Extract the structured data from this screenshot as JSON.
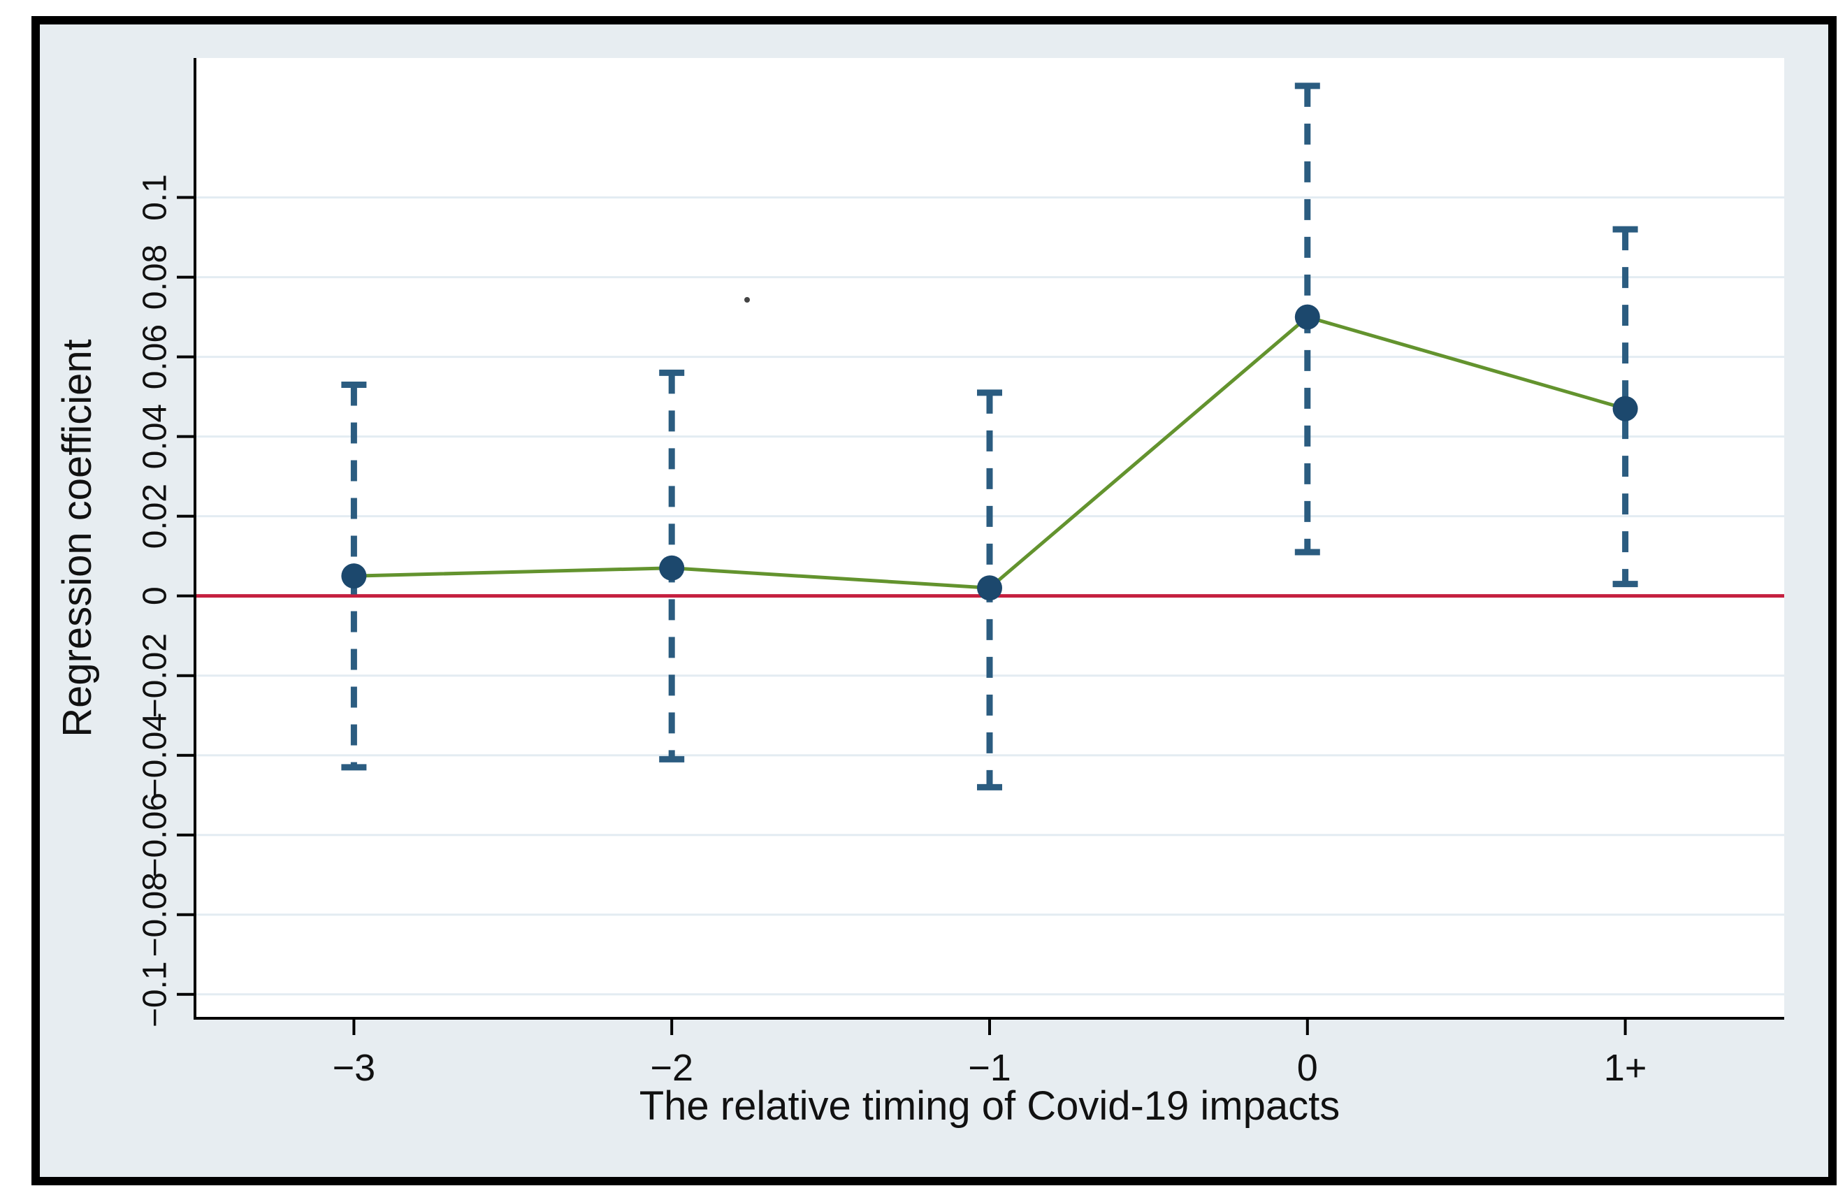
{
  "figure": {
    "page_background": "#ffffff",
    "frame_border_color": "#000000",
    "inner_background": "#e7edf1"
  },
  "chart_data": {
    "type": "line",
    "xlabel": "The relative timing of Covid-19 impacts",
    "ylabel": "Regression coefficient",
    "categories": [
      "−3",
      "−2",
      "−1",
      "0",
      "1+"
    ],
    "series": [
      {
        "name": "Regression coefficient",
        "values": [
          0.005,
          0.007,
          0.002,
          0.07,
          0.047
        ],
        "ci_low": [
          -0.043,
          -0.041,
          -0.048,
          0.011,
          0.003
        ],
        "ci_high": [
          0.053,
          0.056,
          0.051,
          0.128,
          0.092
        ]
      }
    ],
    "zero_line": 0,
    "y_ticks": {
      "values": [
        0.1,
        0.08,
        0.06,
        0.04,
        0.02,
        0,
        -0.02,
        -0.04,
        -0.06,
        -0.08,
        -0.1
      ],
      "labels": [
        "0.1",
        "0.08",
        "0.06",
        "0.04",
        "0.02",
        "0",
        "−0.02",
        "−0.04",
        "−0.06",
        "−0.08",
        "−0.1"
      ]
    },
    "ylim": [
      -0.106,
      0.135
    ],
    "grid": true,
    "legend": "none",
    "marker": "filled-circle",
    "ci_style": "dashed-with-caps",
    "colors": {
      "line": "#63932e",
      "marker": "#1c486d",
      "ci": "#2b5c80",
      "zero_line": "#c51f3f",
      "grid": "#e3ecf2",
      "axis": "#000000",
      "tick_text": "#111111",
      "plot_background": "#ffffff"
    },
    "artifacts": {
      "stray_dot": {
        "x": 1069,
        "y": 429
      }
    }
  }
}
